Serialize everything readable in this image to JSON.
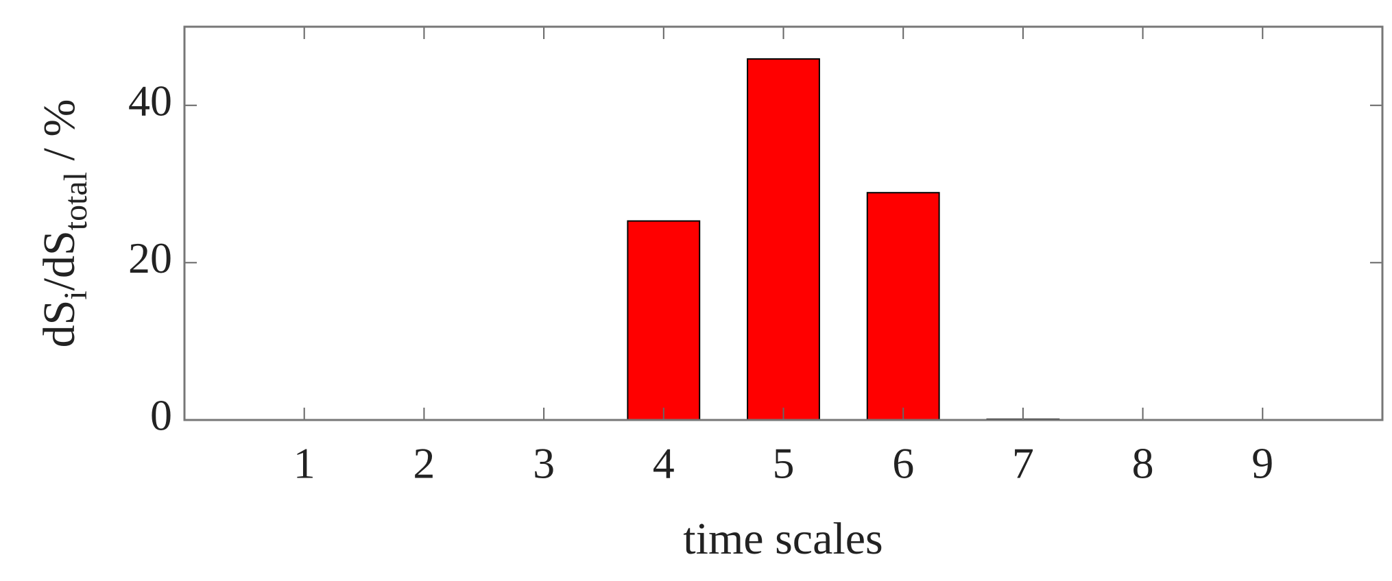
{
  "chart_data": {
    "type": "bar",
    "xlabel": "time scales",
    "ylabel": [
      "dS",
      "i",
      "/dS",
      "total",
      " / %"
    ],
    "x": [
      1,
      2,
      3,
      4,
      5,
      6,
      7,
      8,
      9
    ],
    "values": [
      0,
      0,
      0,
      25.3,
      45.9,
      28.9,
      0.1,
      0,
      0
    ],
    "color": "#ff0000",
    "xlim": [
      0,
      10
    ],
    "xticks": [
      1,
      2,
      3,
      4,
      5,
      6,
      7,
      8,
      9
    ],
    "ylim": [
      0,
      50
    ],
    "yticks": [
      0,
      20,
      40
    ],
    "grid": false
  }
}
